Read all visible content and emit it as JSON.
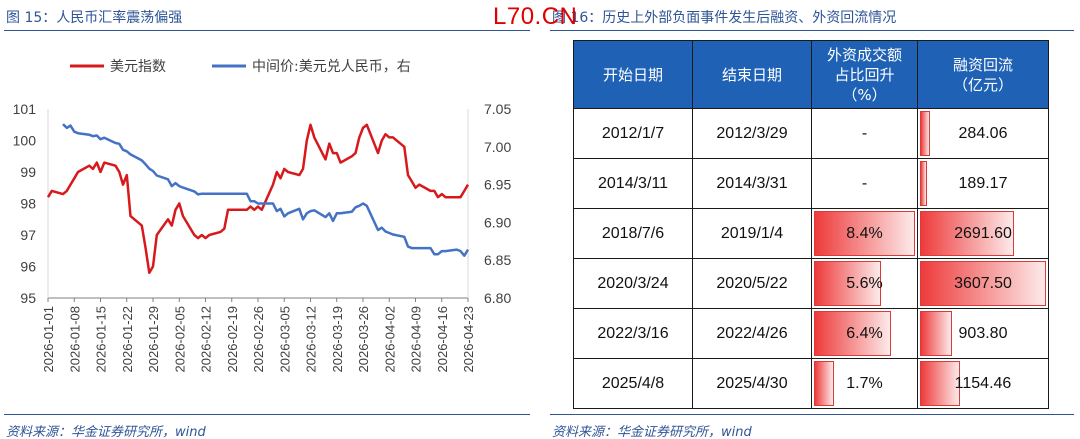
{
  "watermark": "L70.CN",
  "left_figure": {
    "title": "图 15：人民币汇率震荡偏强",
    "source": "资料来源：华金证券研究所，wind"
  },
  "right_figure": {
    "title": "图 16：历史上外部负面事件发生后融资、外资回流情况",
    "source": "资料来源：华金证券研究所，wind"
  },
  "colors": {
    "title": "#2f5597",
    "series1": "#d7191c",
    "series2": "#4472c4",
    "header": "#1f62b5",
    "bar": "#ee3b3b"
  },
  "chart_data": {
    "type": "line",
    "dates": [
      "2026-01-01",
      "2026-01-08",
      "2026-01-15",
      "2026-01-22",
      "2026-01-29",
      "2026-02-05",
      "2026-02-12",
      "2026-02-19",
      "2026-02-26",
      "2026-03-05",
      "2026-03-12",
      "2026-03-19",
      "2026-03-26",
      "2026-04-02",
      "2026-04-09",
      "2026-04-16",
      "2026-04-23"
    ],
    "xticks": [
      "2026-01-01",
      "2026-01-08",
      "2026-01-15",
      "2026-01-22",
      "2026-01-29",
      "2026-02-05",
      "2026-02-12",
      "2026-02-19",
      "2026-02-26",
      "2026-03-05",
      "2026-03-12",
      "2026-03-19",
      "2026-03-26",
      "2026-04-02",
      "2026-04-09",
      "2026-04-16",
      "2026-04-23"
    ],
    "ylim_left": [
      95,
      101
    ],
    "yticks_left": [
      "95",
      "96",
      "97",
      "98",
      "99",
      "100",
      "101"
    ],
    "ylim_right": [
      6.8,
      7.05
    ],
    "yticks_right": [
      "6.80",
      "6.85",
      "6.90",
      "6.95",
      "7.00",
      "7.05"
    ],
    "legend_position": "top",
    "series": [
      {
        "name": "美元指数",
        "axis": "left",
        "color": "#d7191c",
        "x": [
          "2026-01-01",
          "2026-01-02",
          "2026-01-05",
          "2026-01-06",
          "2026-01-07",
          "2026-01-08",
          "2026-01-09",
          "2026-01-12",
          "2026-01-13",
          "2026-01-14",
          "2026-01-15",
          "2026-01-16",
          "2026-01-19",
          "2026-01-20",
          "2026-01-21",
          "2026-01-22",
          "2026-01-23",
          "2026-01-26",
          "2026-01-27",
          "2026-01-28",
          "2026-01-29",
          "2026-01-30",
          "2026-02-02",
          "2026-02-03",
          "2026-02-04",
          "2026-02-05",
          "2026-02-06",
          "2026-02-09",
          "2026-02-10",
          "2026-02-11",
          "2026-02-12",
          "2026-02-13",
          "2026-02-16",
          "2026-02-17",
          "2026-02-18",
          "2026-02-19",
          "2026-02-20",
          "2026-02-23",
          "2026-02-24",
          "2026-02-25",
          "2026-02-26",
          "2026-02-27",
          "2026-03-02",
          "2026-03-03",
          "2026-03-04",
          "2026-03-05",
          "2026-03-06",
          "2026-03-09",
          "2026-03-10",
          "2026-03-11",
          "2026-03-12",
          "2026-03-13",
          "2026-03-16",
          "2026-03-17",
          "2026-03-18",
          "2026-03-19",
          "2026-03-20",
          "2026-03-23",
          "2026-03-24",
          "2026-03-25",
          "2026-03-26",
          "2026-03-27",
          "2026-03-30",
          "2026-03-31",
          "2026-04-01",
          "2026-04-02",
          "2026-04-03",
          "2026-04-06",
          "2026-04-07",
          "2026-04-08",
          "2026-04-09",
          "2026-04-10",
          "2026-04-13",
          "2026-04-14",
          "2026-04-15",
          "2026-04-16",
          "2026-04-17",
          "2026-04-20",
          "2026-04-21",
          "2026-04-22",
          "2026-04-23"
        ],
        "y": [
          98.2,
          98.4,
          98.3,
          98.4,
          98.6,
          98.8,
          99.0,
          99.2,
          99.1,
          99.3,
          99.0,
          99.3,
          99.2,
          99.0,
          98.6,
          98.9,
          97.6,
          97.3,
          96.6,
          95.8,
          96.0,
          97.0,
          97.5,
          97.3,
          97.8,
          98.0,
          97.6,
          97.0,
          96.9,
          97.0,
          96.9,
          97.0,
          97.1,
          97.2,
          97.8,
          97.8,
          97.8,
          97.8,
          97.9,
          97.8,
          97.9,
          97.8,
          98.6,
          99.0,
          98.8,
          99.1,
          99.0,
          98.9,
          99.1,
          100.0,
          100.5,
          100.1,
          99.4,
          99.9,
          99.6,
          99.6,
          99.3,
          99.5,
          99.6,
          100.1,
          100.4,
          100.5,
          99.6,
          100.0,
          100.2,
          100.1,
          100.1,
          99.8,
          98.9,
          98.7,
          98.5,
          98.6,
          98.4,
          98.4,
          98.2,
          98.3,
          98.2,
          98.2,
          98.2,
          98.4,
          98.6
        ]
      },
      {
        "name": "中间价:美元兑人民币，右",
        "axis": "right",
        "color": "#4472c4",
        "x": [
          "2026-01-05",
          "2026-01-06",
          "2026-01-07",
          "2026-01-08",
          "2026-01-09",
          "2026-01-12",
          "2026-01-13",
          "2026-01-14",
          "2026-01-15",
          "2026-01-16",
          "2026-01-19",
          "2026-01-20",
          "2026-01-21",
          "2026-01-22",
          "2026-01-23",
          "2026-01-26",
          "2026-01-27",
          "2026-01-28",
          "2026-01-29",
          "2026-01-30",
          "2026-02-02",
          "2026-02-03",
          "2026-02-04",
          "2026-02-05",
          "2026-02-06",
          "2026-02-09",
          "2026-02-10",
          "2026-02-11",
          "2026-02-12",
          "2026-02-13",
          "2026-02-16",
          "2026-02-17",
          "2026-02-18",
          "2026-02-19",
          "2026-02-20",
          "2026-02-23",
          "2026-02-24",
          "2026-02-25",
          "2026-02-26",
          "2026-02-27",
          "2026-03-02",
          "2026-03-03",
          "2026-03-04",
          "2026-03-05",
          "2026-03-06",
          "2026-03-09",
          "2026-03-10",
          "2026-03-11",
          "2026-03-12",
          "2026-03-13",
          "2026-03-16",
          "2026-03-17",
          "2026-03-18",
          "2026-03-19",
          "2026-03-20",
          "2026-03-23",
          "2026-03-24",
          "2026-03-25",
          "2026-03-26",
          "2026-03-27",
          "2026-03-30",
          "2026-03-31",
          "2026-04-01",
          "2026-04-02",
          "2026-04-03",
          "2026-04-06",
          "2026-04-07",
          "2026-04-08",
          "2026-04-09",
          "2026-04-10",
          "2026-04-13",
          "2026-04-14",
          "2026-04-15",
          "2026-04-16",
          "2026-04-17",
          "2026-04-20",
          "2026-04-21",
          "2026-04-22",
          "2026-04-23"
        ],
        "y": [
          7.03,
          7.025,
          7.028,
          7.02,
          7.018,
          7.016,
          7.014,
          7.015,
          7.01,
          7.012,
          7.005,
          7.004,
          6.996,
          6.994,
          6.99,
          6.982,
          6.977,
          6.971,
          6.968,
          6.962,
          6.957,
          6.948,
          6.952,
          6.948,
          6.946,
          6.941,
          6.937,
          6.938,
          6.938,
          6.938,
          6.938,
          6.938,
          6.938,
          6.938,
          6.938,
          6.938,
          6.928,
          6.928,
          6.925,
          6.925,
          6.925,
          6.915,
          6.918,
          6.908,
          6.912,
          6.918,
          6.904,
          6.912,
          6.915,
          6.916,
          6.907,
          6.912,
          6.902,
          6.912,
          6.912,
          6.914,
          6.92,
          6.922,
          6.925,
          6.922,
          6.89,
          6.893,
          6.888,
          6.886,
          6.884,
          6.881,
          6.868,
          6.866,
          6.866,
          6.866,
          6.866,
          6.858,
          6.858,
          6.862,
          6.862,
          6.864,
          6.862,
          6.856,
          6.864
        ]
      }
    ]
  },
  "table": {
    "headers": [
      "开始日期",
      "结束日期",
      "外资成交额\n占比回升\n（%）",
      "融资回流\n（亿元）"
    ],
    "rows": [
      {
        "start": "2012/1/7",
        "end": "2012/3/29",
        "foreign_pct": "-",
        "foreign_val": null,
        "finance": "284.06",
        "finance_val": 284.06
      },
      {
        "start": "2014/3/11",
        "end": "2014/3/31",
        "foreign_pct": "-",
        "foreign_val": null,
        "finance": "189.17",
        "finance_val": 189.17
      },
      {
        "start": "2018/7/6",
        "end": "2019/1/4",
        "foreign_pct": "8.4%",
        "foreign_val": 8.4,
        "finance": "2691.60",
        "finance_val": 2691.6
      },
      {
        "start": "2020/3/24",
        "end": "2020/5/22",
        "foreign_pct": "5.6%",
        "foreign_val": 5.6,
        "finance": "3607.50",
        "finance_val": 3607.5
      },
      {
        "start": "2022/3/16",
        "end": "2022/4/26",
        "foreign_pct": "6.4%",
        "foreign_val": 6.4,
        "finance": "903.80",
        "finance_val": 903.8
      },
      {
        "start": "2025/4/8",
        "end": "2025/4/30",
        "foreign_pct": "1.7%",
        "foreign_val": 1.7,
        "finance": "1154.46",
        "finance_val": 1154.46
      }
    ]
  }
}
